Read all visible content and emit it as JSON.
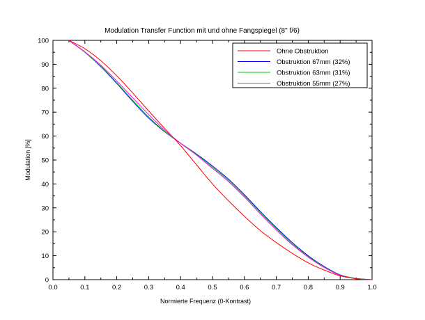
{
  "chart_data": {
    "type": "line",
    "title": "Modulation Transfer Function mit und ohne Fangspiegel (8\" f/6)",
    "xlabel": "Normierte Frequenz (0-Kontrast)",
    "ylabel": "Modulation [%]",
    "xlim": [
      0,
      1
    ],
    "ylim": [
      0,
      100
    ],
    "x_ticks": [
      "0.0",
      "0.1",
      "0.2",
      "0.3",
      "0.4",
      "0.5",
      "0.6",
      "0.7",
      "0.8",
      "0.9",
      "1.0"
    ],
    "y_ticks": [
      "0",
      "10",
      "20",
      "30",
      "40",
      "50",
      "60",
      "70",
      "80",
      "90",
      "100"
    ],
    "grid": false,
    "legend_position": "top-right",
    "x": [
      0.05,
      0.1,
      0.15,
      0.2,
      0.25,
      0.3,
      0.35,
      0.4,
      0.45,
      0.5,
      0.55,
      0.6,
      0.65,
      0.7,
      0.75,
      0.8,
      0.85,
      0.9,
      0.95,
      1.0
    ],
    "series": [
      {
        "name": "Ohne Obstruktion",
        "color": "#ff0000",
        "values": [
          100,
          96.5,
          91.5,
          85.2,
          78.0,
          70.5,
          63.2,
          56.0,
          48.0,
          40.0,
          33.0,
          26.5,
          20.5,
          15.5,
          11.0,
          7.0,
          4.0,
          1.6,
          0.4,
          0.0
        ]
      },
      {
        "name": "Obstruktion 67mm (32%)",
        "color": "#0000ff",
        "values": [
          100,
          95.0,
          89.0,
          82.0,
          74.5,
          67.5,
          61.8,
          57.0,
          52.5,
          47.5,
          42.0,
          35.5,
          28.5,
          21.8,
          15.5,
          10.0,
          5.5,
          2.0,
          0.5,
          0.0
        ]
      },
      {
        "name": "Obstruktion 63mm (31%)",
        "color": "#00cc00",
        "values": [
          100,
          95.0,
          89.2,
          82.3,
          75.0,
          68.0,
          62.0,
          57.0,
          52.3,
          47.0,
          41.5,
          35.0,
          28.0,
          21.3,
          15.0,
          9.7,
          5.3,
          1.9,
          0.5,
          0.0
        ]
      },
      {
        "name": "Obstruktion 55mm (27%)",
        "color": "#ff00ff",
        "values": [
          100,
          95.2,
          89.6,
          83.0,
          76.0,
          69.0,
          62.5,
          57.0,
          52.0,
          46.5,
          41.0,
          34.5,
          27.5,
          20.8,
          14.6,
          9.4,
          5.1,
          1.8,
          0.4,
          0.0
        ]
      }
    ]
  }
}
